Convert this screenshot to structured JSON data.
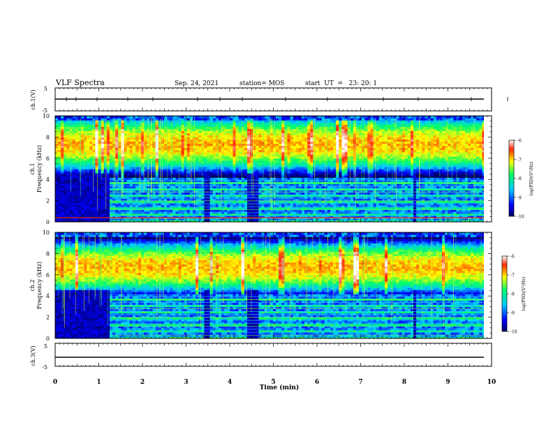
{
  "header": {
    "title": "VLF Spectra",
    "date": "Sep. 24, 2021",
    "station": "station= MOS",
    "start": "start  UT  =   23: 20: 1"
  },
  "chart_data": [
    {
      "type": "line",
      "panel": "ch1-waveform",
      "ylabel": "ch.1(V)",
      "ylim": [
        -5,
        5
      ],
      "y_ticks": [
        "5",
        "-5"
      ],
      "x": [
        0,
        10
      ],
      "series": [
        {
          "values": [
            0,
            0
          ]
        }
      ]
    },
    {
      "type": "heatmap",
      "panel": "ch1-spectrogram",
      "ylabel": "ch.1\nFrequency (kHz)",
      "ylabel_top": "ch.1",
      "ylabel_bottom": "Frequency (kHz)",
      "ylim": [
        0,
        10
      ],
      "y_ticks": [
        "0",
        "2",
        "4",
        "6",
        "8",
        "10"
      ],
      "xlim": [
        0,
        9.85
      ],
      "colorbar": {
        "label": "log(PSD)(V²/Hz)",
        "range": [
          -10,
          -6
        ],
        "ticks": [
          "-6",
          "-7",
          "-8",
          "-9",
          "-10"
        ],
        "colors": [
          "#000060",
          "#0000ff",
          "#00c8ff",
          "#00ff66",
          "#ffff00",
          "#ff2a00",
          "#ffffff"
        ]
      },
      "intense_band_khz": [
        5.5,
        9.2
      ],
      "strong_line_khz": 0.4,
      "quiet_intervals_min": [
        [
          0,
          1.25
        ],
        [
          3.4,
          3.55
        ],
        [
          4.4,
          4.65
        ],
        [
          8.2,
          8.25
        ]
      ]
    },
    {
      "type": "heatmap",
      "panel": "ch2-spectrogram",
      "ylabel": "ch.2\nFrequency (kHz)",
      "ylabel_top": "ch.2",
      "ylabel_bottom": "Frequency (kHz)",
      "ylim": [
        0,
        10
      ],
      "y_ticks": [
        "0",
        "2",
        "4",
        "6",
        "8",
        "10"
      ],
      "xlim": [
        0,
        9.85
      ],
      "colorbar": {
        "label": "log(PSD)(V²/Hz)",
        "range": [
          -10,
          -6
        ],
        "ticks": [
          "-6",
          "-7",
          "-8",
          "-9",
          "-10"
        ],
        "colors": [
          "#000060",
          "#0000ff",
          "#00c8ff",
          "#00ff66",
          "#ffff00",
          "#ff2a00",
          "#ffffff"
        ]
      },
      "intense_band_khz": [
        5.0,
        8.5
      ],
      "quiet_intervals_min": [
        [
          0,
          1.25
        ],
        [
          3.4,
          3.55
        ],
        [
          4.4,
          4.65
        ],
        [
          8.2,
          8.25
        ]
      ]
    },
    {
      "type": "line",
      "panel": "ch3-waveform",
      "ylabel": "ch.3(V)",
      "ylim": [
        -5,
        5
      ],
      "y_ticks": [
        "5",
        "-5"
      ],
      "x": [
        0,
        10
      ],
      "series": [
        {
          "values": [
            0,
            0
          ]
        }
      ]
    }
  ],
  "xaxis": {
    "label": "Time  (min)",
    "ticks": [
      "0",
      "1",
      "2",
      "3",
      "4",
      "5",
      "6",
      "7",
      "8",
      "9",
      "10"
    ],
    "range": [
      0,
      10
    ]
  }
}
